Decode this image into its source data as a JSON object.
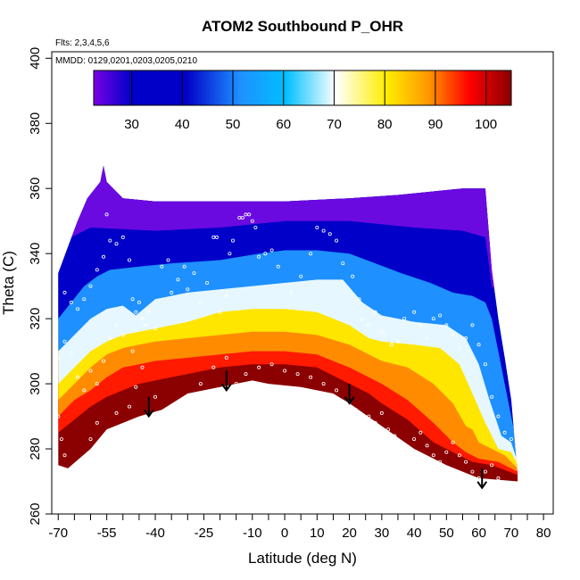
{
  "chart_data": {
    "type": "heatmap",
    "title": "ATOM2 Southbound P_OHR",
    "annotations": {
      "flights": "Flts: 2,3,4,5,6",
      "dates": "MMDD: 0129,0201,0203,0205,0210"
    },
    "xlabel": "Latitude (deg N)",
    "ylabel": "Theta (C)",
    "xlim": [
      -72,
      83
    ],
    "ylim": [
      260,
      402
    ],
    "x_ticks": [
      -70,
      -55,
      -40,
      -25,
      -10,
      0,
      10,
      20,
      30,
      40,
      50,
      60,
      70,
      80
    ],
    "x_tick_labels": [
      "-70",
      "-55",
      "-40",
      "-25",
      "-10",
      "0",
      "10",
      "20",
      "30",
      "40",
      "50",
      "60",
      "70",
      "80"
    ],
    "x_minor_ticks": [
      -65,
      -60,
      -50,
      -45,
      -35,
      -30,
      -20,
      -15,
      -5,
      5,
      15,
      25,
      35,
      45,
      55,
      65,
      75
    ],
    "y_ticks": [
      260,
      280,
      300,
      320,
      340,
      360,
      380,
      400
    ],
    "y_tick_labels": [
      "260",
      "280",
      "300",
      "320",
      "340",
      "360",
      "380",
      "400"
    ],
    "colorbar": {
      "min": 22.5,
      "max": 105,
      "ticks": [
        30,
        40,
        50,
        60,
        70,
        80,
        90,
        100
      ],
      "tick_labels": [
        "30",
        "40",
        "50",
        "60",
        "70",
        "80",
        "90",
        "100"
      ],
      "colors": [
        "#7a00e6",
        "#0000c8",
        "#1e90ff",
        "#00bfff",
        "#ffffff",
        "#ffee00",
        "#ff9900",
        "#ff0000",
        "#8b0000"
      ]
    },
    "domain": {
      "top": [
        [
          -70,
          334
        ],
        [
          -67,
          342
        ],
        [
          -64,
          350
        ],
        [
          -61,
          357
        ],
        [
          -57,
          362
        ],
        [
          -56,
          367
        ],
        [
          -55,
          362
        ],
        [
          -50,
          357
        ],
        [
          -40,
          356
        ],
        [
          -20,
          356
        ],
        [
          0,
          356
        ],
        [
          20,
          357
        ],
        [
          35,
          358
        ],
        [
          45,
          359
        ],
        [
          55,
          360
        ],
        [
          62,
          360
        ],
        [
          64,
          335
        ],
        [
          66,
          320
        ],
        [
          68,
          308
        ],
        [
          70,
          295
        ],
        [
          72,
          272
        ]
      ],
      "bottom": [
        [
          -70,
          275
        ],
        [
          -67,
          274
        ],
        [
          -60,
          280
        ],
        [
          -55,
          286
        ],
        [
          -45,
          290
        ],
        [
          -38,
          292
        ],
        [
          -30,
          297
        ],
        [
          -20,
          299
        ],
        [
          -10,
          301
        ],
        [
          -5,
          300
        ],
        [
          5,
          299
        ],
        [
          15,
          297
        ],
        [
          20,
          294
        ],
        [
          30,
          287
        ],
        [
          40,
          280
        ],
        [
          50,
          275
        ],
        [
          60,
          271
        ],
        [
          72,
          270
        ]
      ]
    },
    "contours": {
      "c30": [
        [
          -70,
          320
        ],
        [
          -66,
          325
        ],
        [
          -62,
          330
        ],
        [
          -58,
          333
        ],
        [
          -54,
          335
        ],
        [
          -45,
          336
        ],
        [
          -35,
          337
        ],
        [
          -20,
          338
        ],
        [
          -8,
          340
        ],
        [
          0,
          341
        ],
        [
          10,
          341
        ],
        [
          20,
          340
        ],
        [
          28,
          337
        ],
        [
          36,
          334
        ],
        [
          45,
          331
        ],
        [
          52,
          328
        ],
        [
          58,
          327
        ],
        [
          62,
          325
        ],
        [
          64,
          320
        ],
        [
          66,
          310
        ],
        [
          68,
          300
        ],
        [
          70,
          290
        ],
        [
          72,
          280
        ]
      ],
      "c45": [
        [
          -70,
          310
        ],
        [
          -65,
          315
        ],
        [
          -60,
          320
        ],
        [
          -55,
          323
        ],
        [
          -50,
          324
        ],
        [
          -46,
          321
        ],
        [
          -40,
          326
        ],
        [
          -30,
          328
        ],
        [
          -20,
          329
        ],
        [
          -10,
          330
        ],
        [
          0,
          331
        ],
        [
          10,
          332
        ],
        [
          18,
          332
        ],
        [
          24,
          325
        ],
        [
          30,
          321
        ],
        [
          40,
          319
        ],
        [
          50,
          318
        ],
        [
          56,
          314
        ],
        [
          60,
          306
        ],
        [
          63,
          296
        ],
        [
          67,
          284
        ],
        [
          70,
          282
        ],
        [
          72,
          276
        ]
      ],
      "c60": [
        [
          -70,
          300
        ],
        [
          -65,
          305
        ],
        [
          -60,
          310
        ],
        [
          -55,
          313
        ],
        [
          -50,
          315
        ],
        [
          -45,
          316
        ],
        [
          -40,
          317
        ],
        [
          -30,
          319
        ],
        [
          -20,
          322
        ],
        [
          -10,
          323
        ],
        [
          0,
          323
        ],
        [
          10,
          322
        ],
        [
          20,
          318
        ],
        [
          26,
          314
        ],
        [
          30,
          313
        ],
        [
          40,
          312
        ],
        [
          48,
          311
        ],
        [
          54,
          306
        ],
        [
          58,
          297
        ],
        [
          62,
          288
        ],
        [
          66,
          280
        ],
        [
          70,
          279
        ],
        [
          72,
          275
        ]
      ],
      "c70": [
        [
          -70,
          295
        ],
        [
          -65,
          300
        ],
        [
          -60,
          305
        ],
        [
          -55,
          309
        ],
        [
          -50,
          311
        ],
        [
          -45,
          312
        ],
        [
          -40,
          313
        ],
        [
          -30,
          314
        ],
        [
          -20,
          315
        ],
        [
          -10,
          316
        ],
        [
          0,
          316
        ],
        [
          10,
          315
        ],
        [
          20,
          312
        ],
        [
          26,
          309
        ],
        [
          30,
          307
        ],
        [
          38,
          305
        ],
        [
          46,
          300
        ],
        [
          52,
          294
        ],
        [
          56,
          287
        ],
        [
          58,
          286
        ],
        [
          60,
          282
        ],
        [
          64,
          280
        ],
        [
          68,
          278
        ],
        [
          72,
          274
        ]
      ],
      "c80": [
        [
          -70,
          290
        ],
        [
          -65,
          295
        ],
        [
          -60,
          298
        ],
        [
          -55,
          302
        ],
        [
          -50,
          305
        ],
        [
          -45,
          306
        ],
        [
          -40,
          307
        ],
        [
          -30,
          308
        ],
        [
          -20,
          309
        ],
        [
          -10,
          310
        ],
        [
          0,
          310
        ],
        [
          10,
          309
        ],
        [
          20,
          305
        ],
        [
          26,
          302
        ],
        [
          30,
          300
        ],
        [
          38,
          295
        ],
        [
          46,
          288
        ],
        [
          52,
          282
        ],
        [
          56,
          279
        ],
        [
          60,
          277
        ],
        [
          66,
          276
        ],
        [
          72,
          273
        ]
      ],
      "c90": [
        [
          -70,
          285
        ],
        [
          -65,
          289
        ],
        [
          -60,
          293
        ],
        [
          -55,
          296
        ],
        [
          -50,
          298
        ],
        [
          -45,
          300
        ],
        [
          -40,
          301
        ],
        [
          -30,
          303
        ],
        [
          -20,
          305
        ],
        [
          -10,
          306
        ],
        [
          0,
          306
        ],
        [
          10,
          305
        ],
        [
          20,
          300
        ],
        [
          26,
          297
        ],
        [
          30,
          294
        ],
        [
          38,
          289
        ],
        [
          46,
          282
        ],
        [
          52,
          279
        ],
        [
          58,
          276
        ],
        [
          64,
          275
        ],
        [
          72,
          272
        ]
      ]
    },
    "arrows": [
      {
        "x": -42,
        "y_from": 296,
        "y_to": 290
      },
      {
        "x": -18,
        "y_from": 304,
        "y_to": 298
      },
      {
        "x": 20,
        "y_from": 300,
        "y_to": 294
      },
      {
        "x": 61,
        "y_from": 274,
        "y_to": 268
      }
    ],
    "obs_points": [
      [
        -68,
        328
      ],
      [
        -66,
        325
      ],
      [
        -64,
        323
      ],
      [
        -62,
        326
      ],
      [
        -60,
        330
      ],
      [
        -58,
        335
      ],
      [
        -56,
        339
      ],
      [
        -55,
        352
      ],
      [
        -54,
        344
      ],
      [
        -52,
        343
      ],
      [
        -50,
        345
      ],
      [
        -48,
        338
      ],
      [
        -47,
        326
      ],
      [
        -46,
        322
      ],
      [
        -45,
        325
      ],
      [
        -44,
        320
      ],
      [
        -43,
        318
      ],
      [
        -42,
        322
      ],
      [
        -40,
        317
      ],
      [
        -38,
        336
      ],
      [
        -36,
        338
      ],
      [
        -35,
        328
      ],
      [
        -33,
        332
      ],
      [
        -31,
        336
      ],
      [
        -30,
        329
      ],
      [
        -28,
        334
      ],
      [
        -26,
        325
      ],
      [
        -24,
        331
      ],
      [
        -22,
        345
      ],
      [
        -21,
        345
      ],
      [
        -20,
        322
      ],
      [
        -18,
        327
      ],
      [
        -17,
        340
      ],
      [
        -16,
        344
      ],
      [
        -14,
        351
      ],
      [
        -13,
        351
      ],
      [
        -12,
        352
      ],
      [
        -11,
        352
      ],
      [
        -10,
        350
      ],
      [
        -9,
        348
      ],
      [
        -8,
        339
      ],
      [
        -6,
        340
      ],
      [
        -4,
        341
      ],
      [
        -2,
        336
      ],
      [
        2,
        328
      ],
      [
        5,
        333
      ],
      [
        8,
        340
      ],
      [
        10,
        348
      ],
      [
        12,
        347
      ],
      [
        14,
        346
      ],
      [
        16,
        344
      ],
      [
        18,
        337
      ],
      [
        21,
        333
      ],
      [
        23,
        326
      ],
      [
        24,
        320
      ],
      [
        26,
        318
      ],
      [
        28,
        322
      ],
      [
        30,
        316
      ],
      [
        31,
        315
      ],
      [
        33,
        312
      ],
      [
        35,
        313
      ],
      [
        37,
        320
      ],
      [
        40,
        322
      ],
      [
        42,
        318
      ],
      [
        44,
        314
      ],
      [
        46,
        320
      ],
      [
        48,
        321
      ],
      [
        50,
        318
      ],
      [
        52,
        315
      ],
      [
        54,
        311
      ],
      [
        56,
        314
      ],
      [
        58,
        318
      ],
      [
        60,
        312
      ],
      [
        62,
        306
      ],
      [
        64,
        296
      ],
      [
        66,
        290
      ],
      [
        68,
        285
      ],
      [
        70,
        283
      ],
      [
        -68,
        313
      ],
      [
        -66,
        309
      ],
      [
        -64,
        302
      ],
      [
        -62,
        298
      ],
      [
        -60,
        304
      ],
      [
        -58,
        300
      ],
      [
        -56,
        307
      ],
      [
        -54,
        314
      ],
      [
        -52,
        318
      ],
      [
        -50,
        315
      ],
      [
        -47,
        310
      ],
      [
        -44,
        305
      ],
      [
        -40,
        296
      ],
      [
        -37,
        290
      ],
      [
        -34,
        292
      ],
      [
        -30,
        296
      ],
      [
        -26,
        300
      ],
      [
        -22,
        305
      ],
      [
        -18,
        308
      ],
      [
        -15,
        300
      ],
      [
        -12,
        303
      ],
      [
        -8,
        305
      ],
      [
        -4,
        306
      ],
      [
        0,
        304
      ],
      [
        4,
        303
      ],
      [
        8,
        302
      ],
      [
        12,
        300
      ],
      [
        16,
        298
      ],
      [
        18,
        294
      ],
      [
        22,
        292
      ],
      [
        26,
        290
      ],
      [
        28,
        288
      ],
      [
        30,
        291
      ],
      [
        32,
        286
      ],
      [
        34,
        284
      ],
      [
        36,
        282
      ],
      [
        38,
        280
      ],
      [
        40,
        283
      ],
      [
        42,
        285
      ],
      [
        44,
        281
      ],
      [
        46,
        278
      ],
      [
        48,
        276
      ],
      [
        50,
        279
      ],
      [
        52,
        282
      ],
      [
        54,
        278
      ],
      [
        56,
        276
      ],
      [
        58,
        273
      ],
      [
        60,
        271
      ],
      [
        62,
        273
      ],
      [
        64,
        275
      ],
      [
        66,
        271
      ],
      [
        -70,
        308
      ],
      [
        -70,
        290
      ],
      [
        -69,
        283
      ],
      [
        -68,
        278
      ],
      [
        -60,
        283
      ],
      [
        -58,
        288
      ],
      [
        -52,
        291
      ],
      [
        -48,
        293
      ],
      [
        -46,
        299
      ]
    ]
  }
}
